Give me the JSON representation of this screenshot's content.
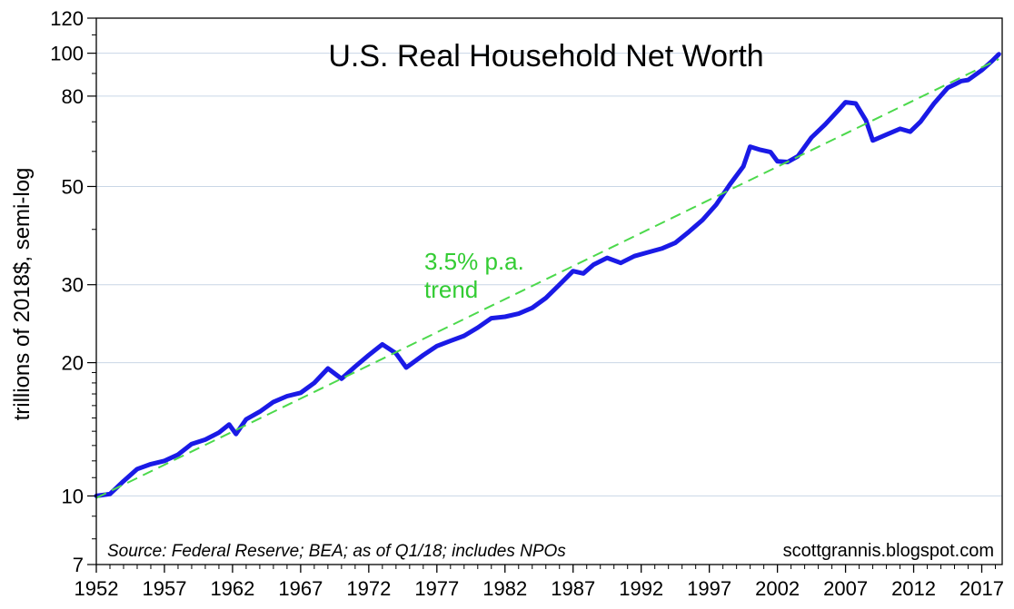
{
  "chart_data": {
    "type": "line",
    "title": "U.S. Real Household Net Worth",
    "ylabel": "trillions of 2018$, semi-log",
    "xlabel": "",
    "y_scale": "log",
    "ylim": [
      7,
      120
    ],
    "xlim": [
      1952,
      2018.5
    ],
    "grid": true,
    "y_ticks": [
      7,
      10,
      20,
      30,
      50,
      80,
      100,
      120
    ],
    "x_ticks": [
      1952,
      1957,
      1962,
      1967,
      1972,
      1977,
      1982,
      1987,
      1992,
      1997,
      2002,
      2007,
      2012,
      2017
    ],
    "series": [
      {
        "name": "",
        "color": "#1a1ae6",
        "style": "solid",
        "points": [
          [
            1952.0,
            10.0
          ],
          [
            1953.0,
            10.1
          ],
          [
            1954.0,
            10.8
          ],
          [
            1955.0,
            11.5
          ],
          [
            1956.0,
            11.8
          ],
          [
            1957.0,
            12.0
          ],
          [
            1958.0,
            12.4
          ],
          [
            1959.0,
            13.1
          ],
          [
            1960.0,
            13.4
          ],
          [
            1961.0,
            13.9
          ],
          [
            1961.75,
            14.5
          ],
          [
            1962.25,
            13.8
          ],
          [
            1963.0,
            14.9
          ],
          [
            1964.0,
            15.5
          ],
          [
            1965.0,
            16.3
          ],
          [
            1966.0,
            16.8
          ],
          [
            1967.0,
            17.1
          ],
          [
            1968.0,
            18.0
          ],
          [
            1969.0,
            19.4
          ],
          [
            1970.0,
            18.4
          ],
          [
            1971.0,
            19.6
          ],
          [
            1972.0,
            20.8
          ],
          [
            1973.0,
            22.0
          ],
          [
            1974.0,
            21.0
          ],
          [
            1974.75,
            19.5
          ],
          [
            1976.0,
            20.8
          ],
          [
            1977.0,
            21.8
          ],
          [
            1978.0,
            22.4
          ],
          [
            1979.0,
            23.0
          ],
          [
            1980.0,
            24.0
          ],
          [
            1981.0,
            25.2
          ],
          [
            1982.0,
            25.4
          ],
          [
            1983.0,
            25.8
          ],
          [
            1984.0,
            26.6
          ],
          [
            1985.0,
            28.0
          ],
          [
            1986.0,
            30.0
          ],
          [
            1987.0,
            32.2
          ],
          [
            1987.75,
            31.8
          ],
          [
            1988.5,
            33.3
          ],
          [
            1989.5,
            34.5
          ],
          [
            1990.5,
            33.6
          ],
          [
            1991.5,
            34.8
          ],
          [
            1992.5,
            35.5
          ],
          [
            1993.5,
            36.2
          ],
          [
            1994.5,
            37.3
          ],
          [
            1995.5,
            39.5
          ],
          [
            1996.5,
            42.0
          ],
          [
            1997.5,
            45.5
          ],
          [
            1998.5,
            50.5
          ],
          [
            1999.5,
            55.5
          ],
          [
            2000.0,
            61.5
          ],
          [
            2000.75,
            60.5
          ],
          [
            2001.5,
            59.8
          ],
          [
            2002.0,
            57.0
          ],
          [
            2002.75,
            56.8
          ],
          [
            2003.5,
            58.5
          ],
          [
            2004.5,
            64.5
          ],
          [
            2005.5,
            69.0
          ],
          [
            2006.5,
            74.5
          ],
          [
            2007.0,
            77.5
          ],
          [
            2007.75,
            77.0
          ],
          [
            2008.5,
            70.5
          ],
          [
            2009.0,
            63.5
          ],
          [
            2010.0,
            65.5
          ],
          [
            2011.0,
            67.5
          ],
          [
            2011.75,
            66.5
          ],
          [
            2012.5,
            70.0
          ],
          [
            2013.5,
            77.0
          ],
          [
            2014.5,
            83.5
          ],
          [
            2015.0,
            85.0
          ],
          [
            2015.5,
            86.5
          ],
          [
            2016.0,
            87.0
          ],
          [
            2017.0,
            91.5
          ],
          [
            2017.75,
            96.0
          ],
          [
            2018.25,
            99.5
          ]
        ]
      },
      {
        "name": "",
        "color": "#4cd94c",
        "style": "dashed",
        "points": [
          [
            1952.0,
            9.9
          ],
          [
            2018.25,
            97.0
          ]
        ]
      }
    ],
    "annotations": [
      {
        "text": "3.5% p.a.",
        "color": "#33cc33"
      },
      {
        "text": "trend",
        "color": "#33cc33"
      }
    ],
    "source": "Source: Federal Reserve; BEA; as of Q1/18; includes NPOs",
    "credit": "scottgrannis.blogspot.com"
  }
}
